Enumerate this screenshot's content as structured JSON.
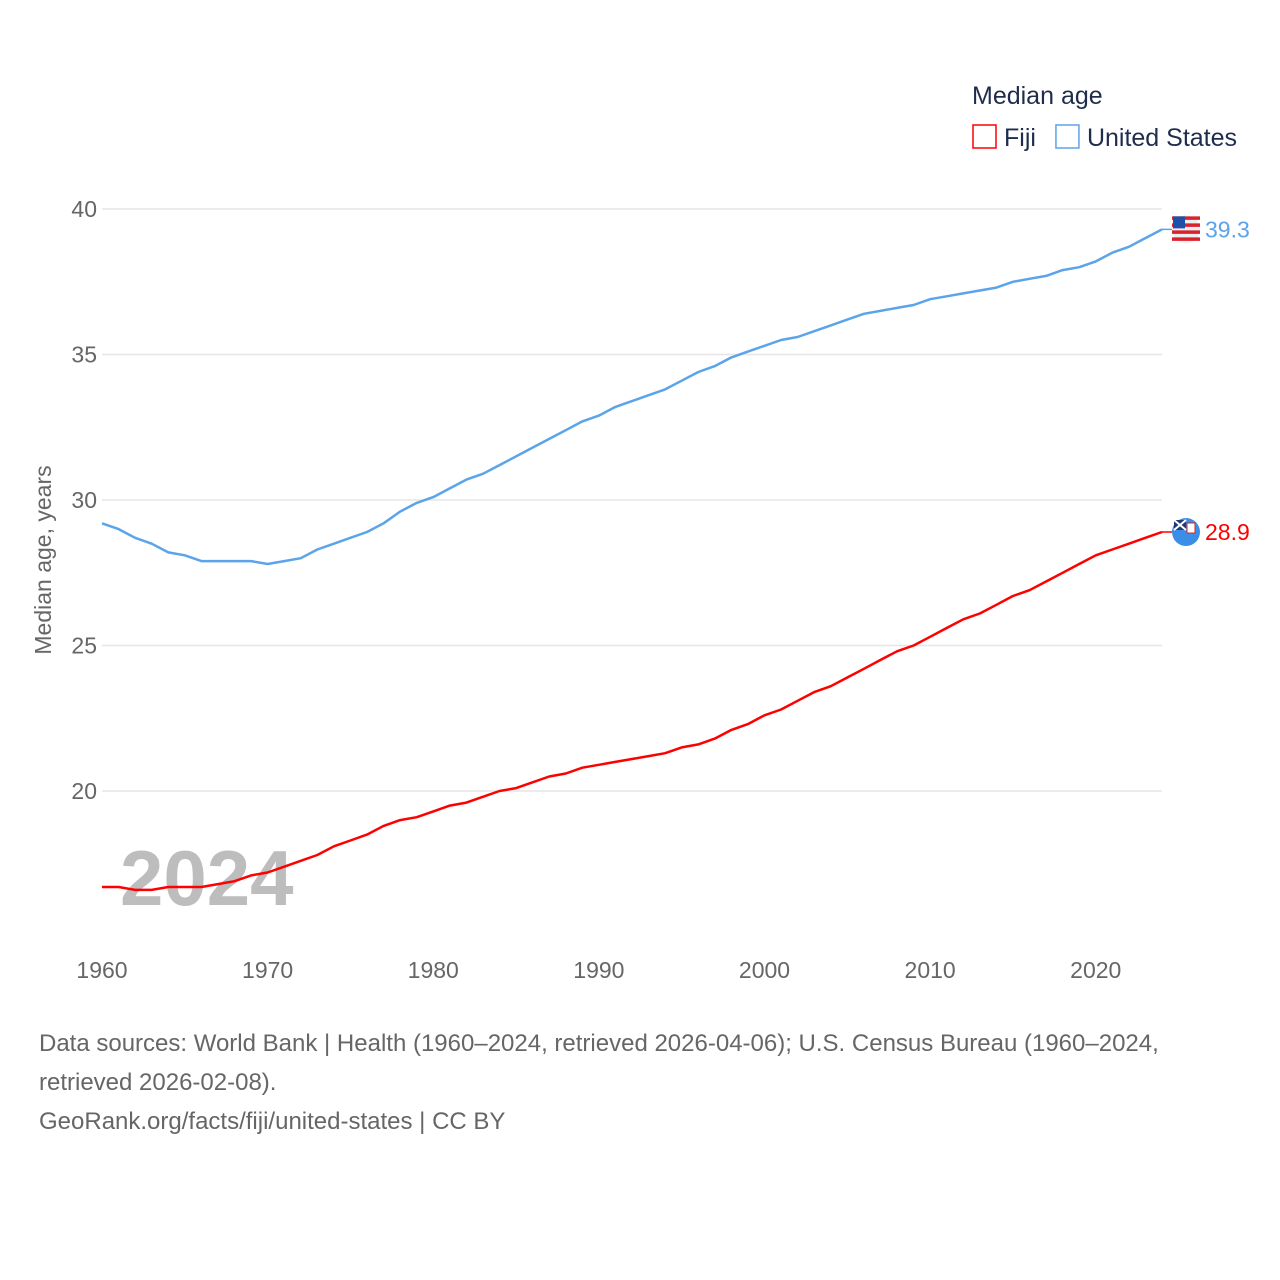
{
  "chart_data": {
    "type": "line",
    "title": "Median age",
    "xlabel": "",
    "ylabel": "Median age, years",
    "xlim": [
      1960,
      2024
    ],
    "ylim": [
      16,
      40
    ],
    "yticks": [
      20,
      25,
      30,
      35,
      40
    ],
    "xticks": [
      1960,
      1970,
      1980,
      1990,
      2000,
      2010,
      2020
    ],
    "grid": true,
    "legend_placement": "top-right",
    "watermark_year": "2024",
    "x": [
      1960,
      1961,
      1962,
      1963,
      1964,
      1965,
      1966,
      1967,
      1968,
      1969,
      1970,
      1971,
      1972,
      1973,
      1974,
      1975,
      1976,
      1977,
      1978,
      1979,
      1980,
      1981,
      1982,
      1983,
      1984,
      1985,
      1986,
      1987,
      1988,
      1989,
      1990,
      1991,
      1992,
      1993,
      1994,
      1995,
      1996,
      1997,
      1998,
      1999,
      2000,
      2001,
      2002,
      2003,
      2004,
      2005,
      2006,
      2007,
      2008,
      2009,
      2010,
      2011,
      2012,
      2013,
      2014,
      2015,
      2016,
      2017,
      2018,
      2019,
      2020,
      2021,
      2022,
      2023,
      2024
    ],
    "series": [
      {
        "name": "Fiji",
        "color": "#ff0000",
        "end_label": "28.9",
        "values": [
          16.7,
          16.7,
          16.6,
          16.6,
          16.7,
          16.7,
          16.7,
          16.8,
          16.9,
          17.1,
          17.2,
          17.4,
          17.6,
          17.8,
          18.1,
          18.3,
          18.5,
          18.8,
          19.0,
          19.1,
          19.3,
          19.5,
          19.6,
          19.8,
          20.0,
          20.1,
          20.3,
          20.5,
          20.6,
          20.8,
          20.9,
          21.0,
          21.1,
          21.2,
          21.3,
          21.5,
          21.6,
          21.8,
          22.1,
          22.3,
          22.6,
          22.8,
          23.1,
          23.4,
          23.6,
          23.9,
          24.2,
          24.5,
          24.8,
          25.0,
          25.3,
          25.6,
          25.9,
          26.1,
          26.4,
          26.7,
          26.9,
          27.2,
          27.5,
          27.8,
          28.1,
          28.3,
          28.5,
          28.7,
          28.9
        ]
      },
      {
        "name": "United States",
        "color": "#5ba4ea",
        "end_label": "39.3",
        "values": [
          29.2,
          29.0,
          28.7,
          28.5,
          28.2,
          28.1,
          27.9,
          27.9,
          27.9,
          27.9,
          27.8,
          27.9,
          28.0,
          28.3,
          28.5,
          28.7,
          28.9,
          29.2,
          29.6,
          29.9,
          30.1,
          30.4,
          30.7,
          30.9,
          31.2,
          31.5,
          31.8,
          32.1,
          32.4,
          32.7,
          32.9,
          33.2,
          33.4,
          33.6,
          33.8,
          34.1,
          34.4,
          34.6,
          34.9,
          35.1,
          35.3,
          35.5,
          35.6,
          35.8,
          36.0,
          36.2,
          36.4,
          36.5,
          36.6,
          36.7,
          36.9,
          37.0,
          37.1,
          37.2,
          37.3,
          37.5,
          37.6,
          37.7,
          37.9,
          38.0,
          38.2,
          38.5,
          38.7,
          39.0,
          39.3
        ]
      }
    ]
  },
  "footer": {
    "sources": "Data sources: World Bank | Health (1960–2024, retrieved 2026-04-06); U.S. Census Bureau (1960–2024, retrieved 2026-02-08).",
    "credit": "GeoRank.org/facts/fiji/united-states | CC BY"
  }
}
